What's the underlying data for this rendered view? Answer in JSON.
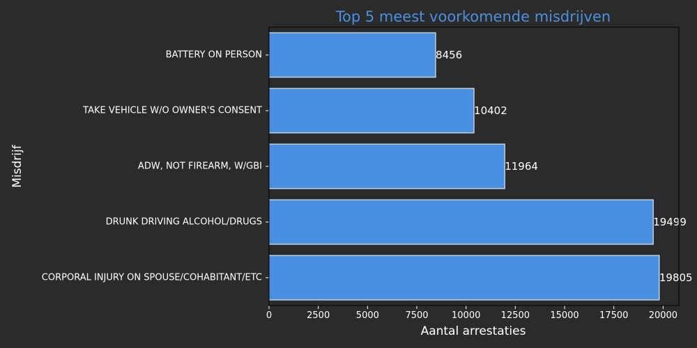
{
  "chart_data": {
    "type": "bar",
    "orientation": "horizontal",
    "title": "Top 5 meest voorkomende misdrijven",
    "xlabel": "Aantal arrestaties",
    "ylabel": "Misdrijf",
    "categories": [
      "CORPORAL INJURY ON SPOUSE/COHABITANT/ETC",
      "DRUNK DRIVING ALCOHOL/DRUGS",
      "ADW, NOT FIREARM, W/GBI",
      "TAKE VEHICLE W/O OWNER'S CONSENT",
      "BATTERY ON PERSON"
    ],
    "values": [
      19805,
      19499,
      11964,
      10402,
      8456
    ],
    "data_labels": [
      "19805",
      "19499",
      "11964",
      "10402",
      "8456"
    ],
    "xlim": [
      0,
      20800
    ],
    "xticks": [
      0,
      2500,
      5000,
      7500,
      10000,
      12500,
      15000,
      17500,
      20000
    ],
    "xtick_labels": [
      "0",
      "2500",
      "5000",
      "7500",
      "10000",
      "12500",
      "15000",
      "17500",
      "20000"
    ],
    "grid": false,
    "colors": {
      "background": "#2b2b2b",
      "bar_fill": "#4a90e2",
      "bar_edge": "#ffffff",
      "title": "#4a90e2",
      "text": "#ffffff",
      "axes": "#000000"
    }
  }
}
